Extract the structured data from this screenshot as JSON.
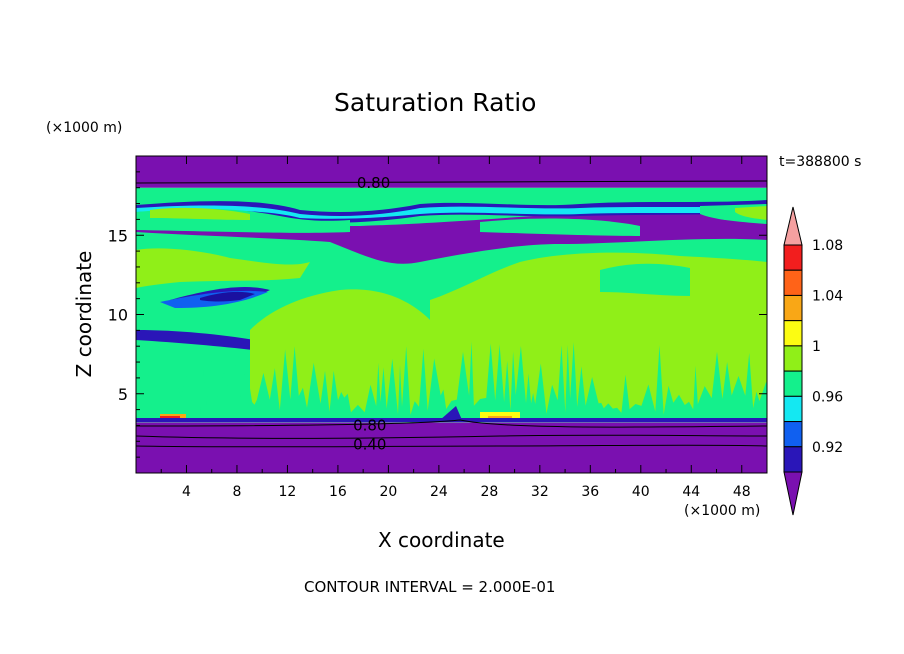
{
  "chart_data": {
    "type": "heatmap",
    "title": "Saturation Ratio",
    "xlabel": "X coordinate",
    "ylabel": "Z coordinate",
    "x_units": "(×1000 m)",
    "y_units": "(×1000 m)",
    "time_label": "t=388800 s",
    "footer": "CONTOUR INTERVAL = 2.000E-01",
    "xlim": [
      0,
      50
    ],
    "ylim": [
      0,
      20
    ],
    "x_ticks": [
      4,
      8,
      12,
      16,
      20,
      24,
      28,
      32,
      36,
      40,
      44,
      48
    ],
    "y_ticks": [
      5,
      10,
      15
    ],
    "contour_labels": [
      {
        "text": "0.80",
        "x": 17.5,
        "z": 18.3
      },
      {
        "text": "0.80",
        "x": 17.2,
        "z": 3.0
      },
      {
        "text": "0.40",
        "x": 17.2,
        "z": 1.8
      }
    ],
    "colorbar": {
      "levels": [
        0.92,
        0.96,
        1,
        1.04,
        1.08
      ],
      "tick_labels": [
        "0.92",
        "0.96",
        "1",
        "1.04",
        "1.08"
      ],
      "colors": [
        "#7a10b0",
        "#2a16b8",
        "#1060f0",
        "#14e8f2",
        "#14f08c",
        "#90ef18",
        "#fcfc12",
        "#f9a716",
        "#ff6318",
        "#f21e1e",
        "#f5a0a0"
      ]
    },
    "field_layers": [
      {
        "value": "<0.90",
        "color": "#7a10b0",
        "z": [
          0,
          3.2
        ]
      },
      {
        "value": "0.96-1.00",
        "color": "#14f08c",
        "z": [
          3.2,
          18.0
        ]
      },
      {
        "value": "<0.90",
        "color": "#7a10b0",
        "z": [
          18.0,
          20
        ]
      }
    ]
  }
}
